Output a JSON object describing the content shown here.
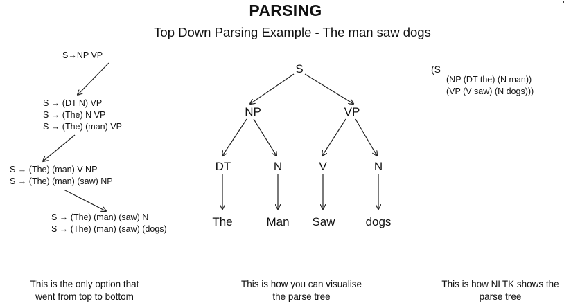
{
  "title": "PARSING",
  "subtitle": "Top Down Parsing Example - The man saw dogs",
  "corner_mark": "'",
  "derivation": {
    "step1": "S→NP  VP",
    "step2": [
      "S → (DT N) VP",
      "S → (The) N VP",
      "S → (The) (man) VP"
    ],
    "step3": [
      "S → (The) (man) V NP",
      "S → (The) (man) (saw) NP"
    ],
    "step4": [
      "S → (The) (man) (saw) N",
      "S → (The) (man) (saw) (dogs)"
    ]
  },
  "tree": {
    "root": "S",
    "np": "NP",
    "vp": "VP",
    "dt": "DT",
    "n1": "N",
    "v": "V",
    "n2": "N",
    "words": [
      "The",
      "Man",
      "Saw",
      "dogs"
    ]
  },
  "nltk": {
    "line1": "(S",
    "line2": "(NP (DT the) (N man))",
    "line3": "(VP (V saw) (N dogs)))"
  },
  "captions": {
    "left": [
      "This is the only option that",
      "went from top to bottom"
    ],
    "middle": [
      "This is how you can visualise",
      "the parse tree"
    ],
    "right": [
      "This is how NLTK shows the",
      "parse tree"
    ]
  }
}
